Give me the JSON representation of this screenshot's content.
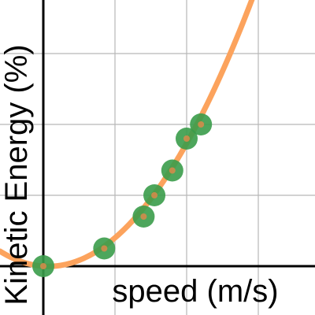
{
  "colors": {
    "background": "#ffffff",
    "grid": "#b8b8b8",
    "axis": "#000000",
    "curve": "#fca35d",
    "point_fill": "#3a9c4a",
    "point_center": "#d98a4a"
  },
  "chart_data": {
    "type": "scatter",
    "title": "",
    "xlabel": "speed (m/s)",
    "ylabel": "Kinetic Energy (%)",
    "grid": true,
    "x_grid_step": 1,
    "y_grid_step": 1,
    "xlim": [
      0,
      3.8
    ],
    "ylim": [
      -0.1,
      3.8
    ],
    "series": [
      {
        "type": "scatter",
        "x": [
          0,
          0.85,
          1.4,
          1.55,
          1.8,
          2.0,
          2.2
        ],
        "y": [
          0,
          0.25,
          0.7,
          1.0,
          1.35,
          1.8,
          2.0
        ]
      },
      {
        "type": "line",
        "curve": "quadratic",
        "coefficients": {
          "a": 0.4667,
          "b": -0.0667,
          "c": 0.0
        }
      }
    ]
  }
}
